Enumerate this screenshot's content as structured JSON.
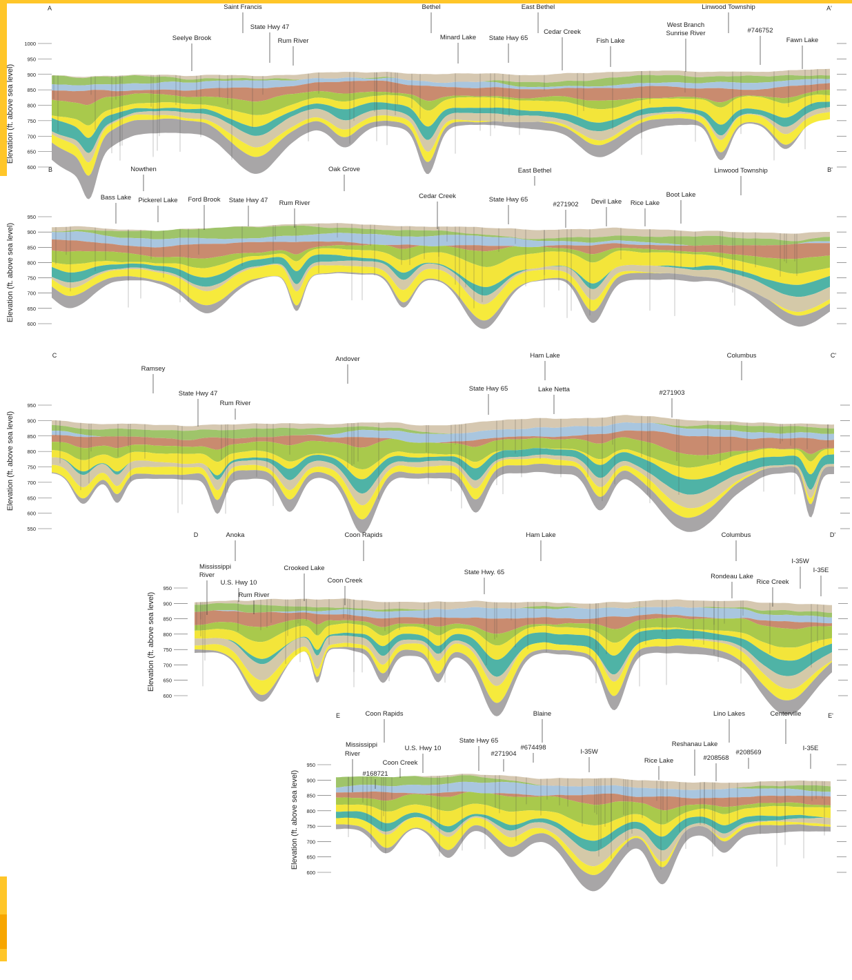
{
  "sections": [
    {
      "start": "A",
      "end": "A'",
      "axis_label": "Elevation (ft. above sea level)",
      "ticks": [
        1000,
        950,
        900,
        850,
        800,
        750,
        700,
        650,
        600
      ],
      "places": [
        "Saint Francis",
        "Bethel",
        "East Bethel",
        "Linwood Township",
        "State Hwy 47",
        "Seelye Brook",
        "Rum River",
        "Minard Lake",
        "State Hwy 65",
        "Cedar Creek",
        "Fish Lake",
        "West Branch",
        "Sunrise River",
        "#746752",
        "Fawn Lake"
      ]
    },
    {
      "start": "B",
      "end": "B'",
      "axis_label": "Elevation (ft. above sea level)",
      "ticks": [
        950,
        900,
        850,
        800,
        750,
        700,
        650,
        600
      ],
      "places": [
        "Nowthen",
        "Oak Grove",
        "East Bethel",
        "Linwood Township",
        "Bass Lake",
        "Pickerel Lake",
        "Ford Brook",
        "State Hwy 47",
        "Rum River",
        "Cedar Creek",
        "State Hwy 65",
        "#271902",
        "Devil Lake",
        "Rice Lake",
        "Boot Lake"
      ]
    },
    {
      "start": "C",
      "end": "C'",
      "axis_label": "Elevation (ft. above sea level)",
      "ticks": [
        950,
        900,
        850,
        800,
        750,
        700,
        650,
        600,
        550
      ],
      "places": [
        "Ramsey",
        "Andover",
        "Ham Lake",
        "Columbus",
        "State Hwy 47",
        "Rum River",
        "State Hwy 65",
        "Lake Netta",
        "#271903"
      ]
    },
    {
      "start": "D",
      "end": "D'",
      "axis_label": "Elevation (ft. above sea level)",
      "ticks": [
        950,
        900,
        850,
        800,
        750,
        700,
        650,
        600
      ],
      "places": [
        "Anoka",
        "Coon Rapids",
        "Ham Lake",
        "Columbus",
        "Mississippi",
        "River",
        "U.S. Hwy 10",
        "Rum River",
        "Crooked Lake",
        "Coon Creek",
        "State Hwy. 65",
        "Rondeau Lake",
        "Rice Creek",
        "I-35W",
        "I-35E"
      ]
    },
    {
      "start": "E",
      "end": "E'",
      "axis_label": "Elevation (ft. above sea level)",
      "ticks": [
        950,
        900,
        850,
        800,
        750,
        700,
        650,
        600
      ],
      "places": [
        "Coon Rapids",
        "Blaine",
        "Lino Lakes",
        "Centerville",
        "Mississippi",
        "River",
        "U.S. Hwy 10",
        "State Hwy 65",
        "#674498",
        "#271904",
        "I-35W",
        "Reshanau Lake",
        "#208568",
        "#208569",
        "Rice Lake",
        "I-35E",
        "Coon Creek",
        "#168721"
      ]
    }
  ]
}
